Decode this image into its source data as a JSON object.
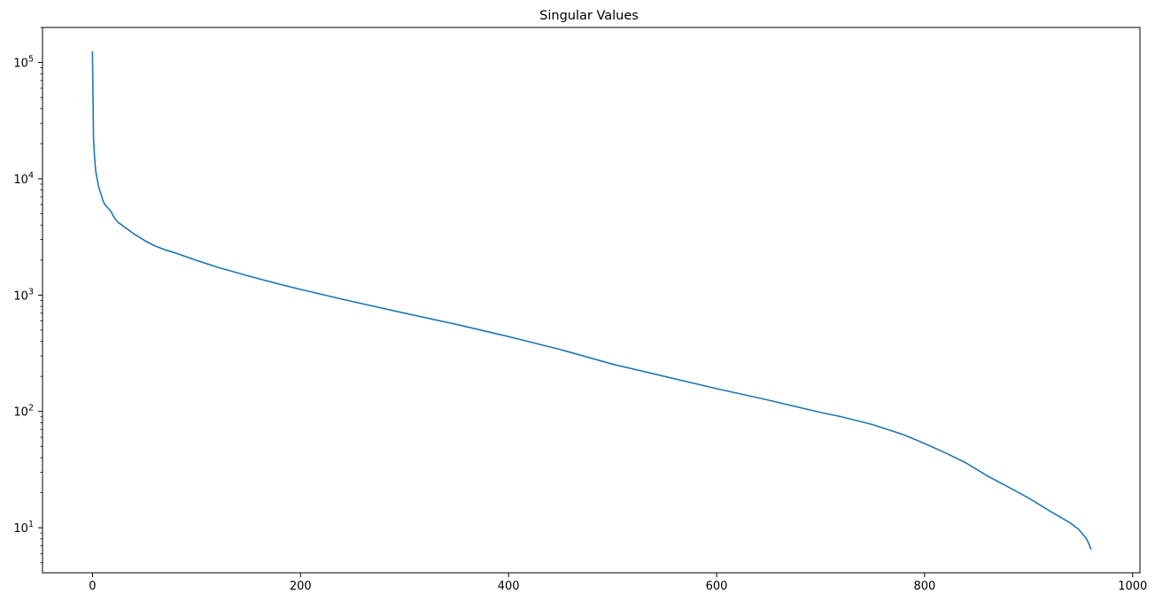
{
  "chart_data": {
    "type": "line",
    "title": "Singular Values",
    "xlabel": "",
    "ylabel": "",
    "yscale": "log",
    "xlim": [
      -48,
      1007
    ],
    "ylim": [
      4.1,
      200000
    ],
    "grid": false,
    "legend": "none",
    "x_ticks": [
      {
        "value": 0,
        "label": "0"
      },
      {
        "value": 200,
        "label": "200"
      },
      {
        "value": 400,
        "label": "400"
      },
      {
        "value": 600,
        "label": "600"
      },
      {
        "value": 800,
        "label": "800"
      },
      {
        "value": 1000,
        "label": "1000"
      }
    ],
    "y_ticks": [
      {
        "value": 10,
        "base": "10",
        "exp": "1"
      },
      {
        "value": 100,
        "base": "10",
        "exp": "2"
      },
      {
        "value": 1000,
        "base": "10",
        "exp": "3"
      },
      {
        "value": 10000,
        "base": "10",
        "exp": "4"
      },
      {
        "value": 100000,
        "base": "10",
        "exp": "5"
      }
    ],
    "series": [
      {
        "color": "#1f77b4",
        "x": [
          0,
          1,
          2,
          3,
          4,
          5,
          6,
          8,
          10,
          12,
          15,
          18,
          20,
          22,
          25,
          30,
          40,
          50,
          60,
          70,
          80,
          100,
          120,
          150,
          180,
          200,
          250,
          300,
          350,
          400,
          450,
          500,
          550,
          600,
          650,
          700,
          720,
          750,
          780,
          800,
          820,
          840,
          860,
          880,
          900,
          920,
          940,
          948,
          952,
          955,
          957,
          959,
          960
        ],
        "y": [
          125000,
          23000,
          15500,
          12000,
          10500,
          9500,
          8500,
          7500,
          6500,
          6000,
          5600,
          5200,
          4800,
          4500,
          4200,
          3900,
          3350,
          2950,
          2650,
          2450,
          2300,
          1990,
          1740,
          1460,
          1240,
          1120,
          880,
          700,
          560,
          440,
          340,
          255,
          200,
          157,
          125,
          98,
          90,
          77,
          63,
          53,
          44,
          36,
          28,
          22.5,
          18,
          14,
          11,
          9.7,
          8.8,
          8.2,
          7.6,
          6.9,
          6.5
        ]
      }
    ]
  }
}
